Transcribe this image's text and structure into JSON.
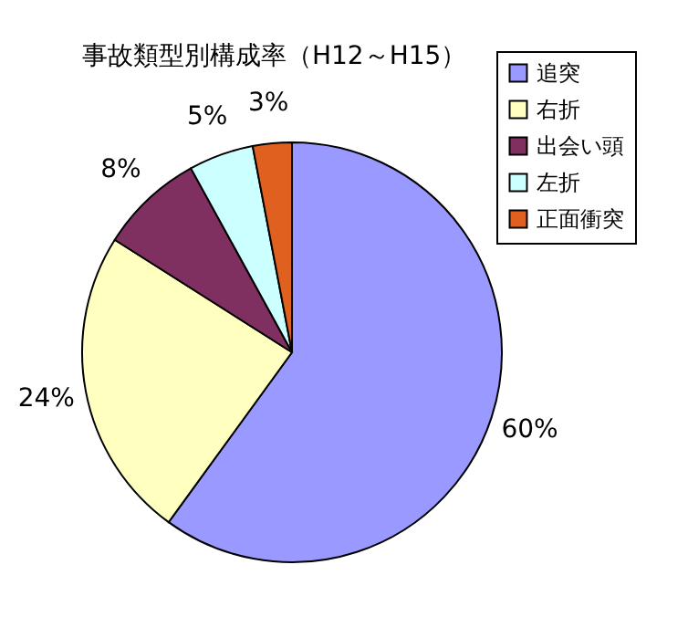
{
  "chart_data": {
    "type": "pie",
    "title": "事故類型別構成率（H12～H15）",
    "categories": [
      "追突",
      "右折",
      "出会い頭",
      "左折",
      "正面衝突"
    ],
    "values": [
      60,
      24,
      8,
      5,
      3
    ],
    "value_labels": [
      "60%",
      "24%",
      "8%",
      "5%",
      "3%"
    ],
    "colors": [
      "#9999ff",
      "#ffffc0",
      "#803060",
      "#ccffff",
      "#e06020"
    ],
    "legend": "top right"
  }
}
